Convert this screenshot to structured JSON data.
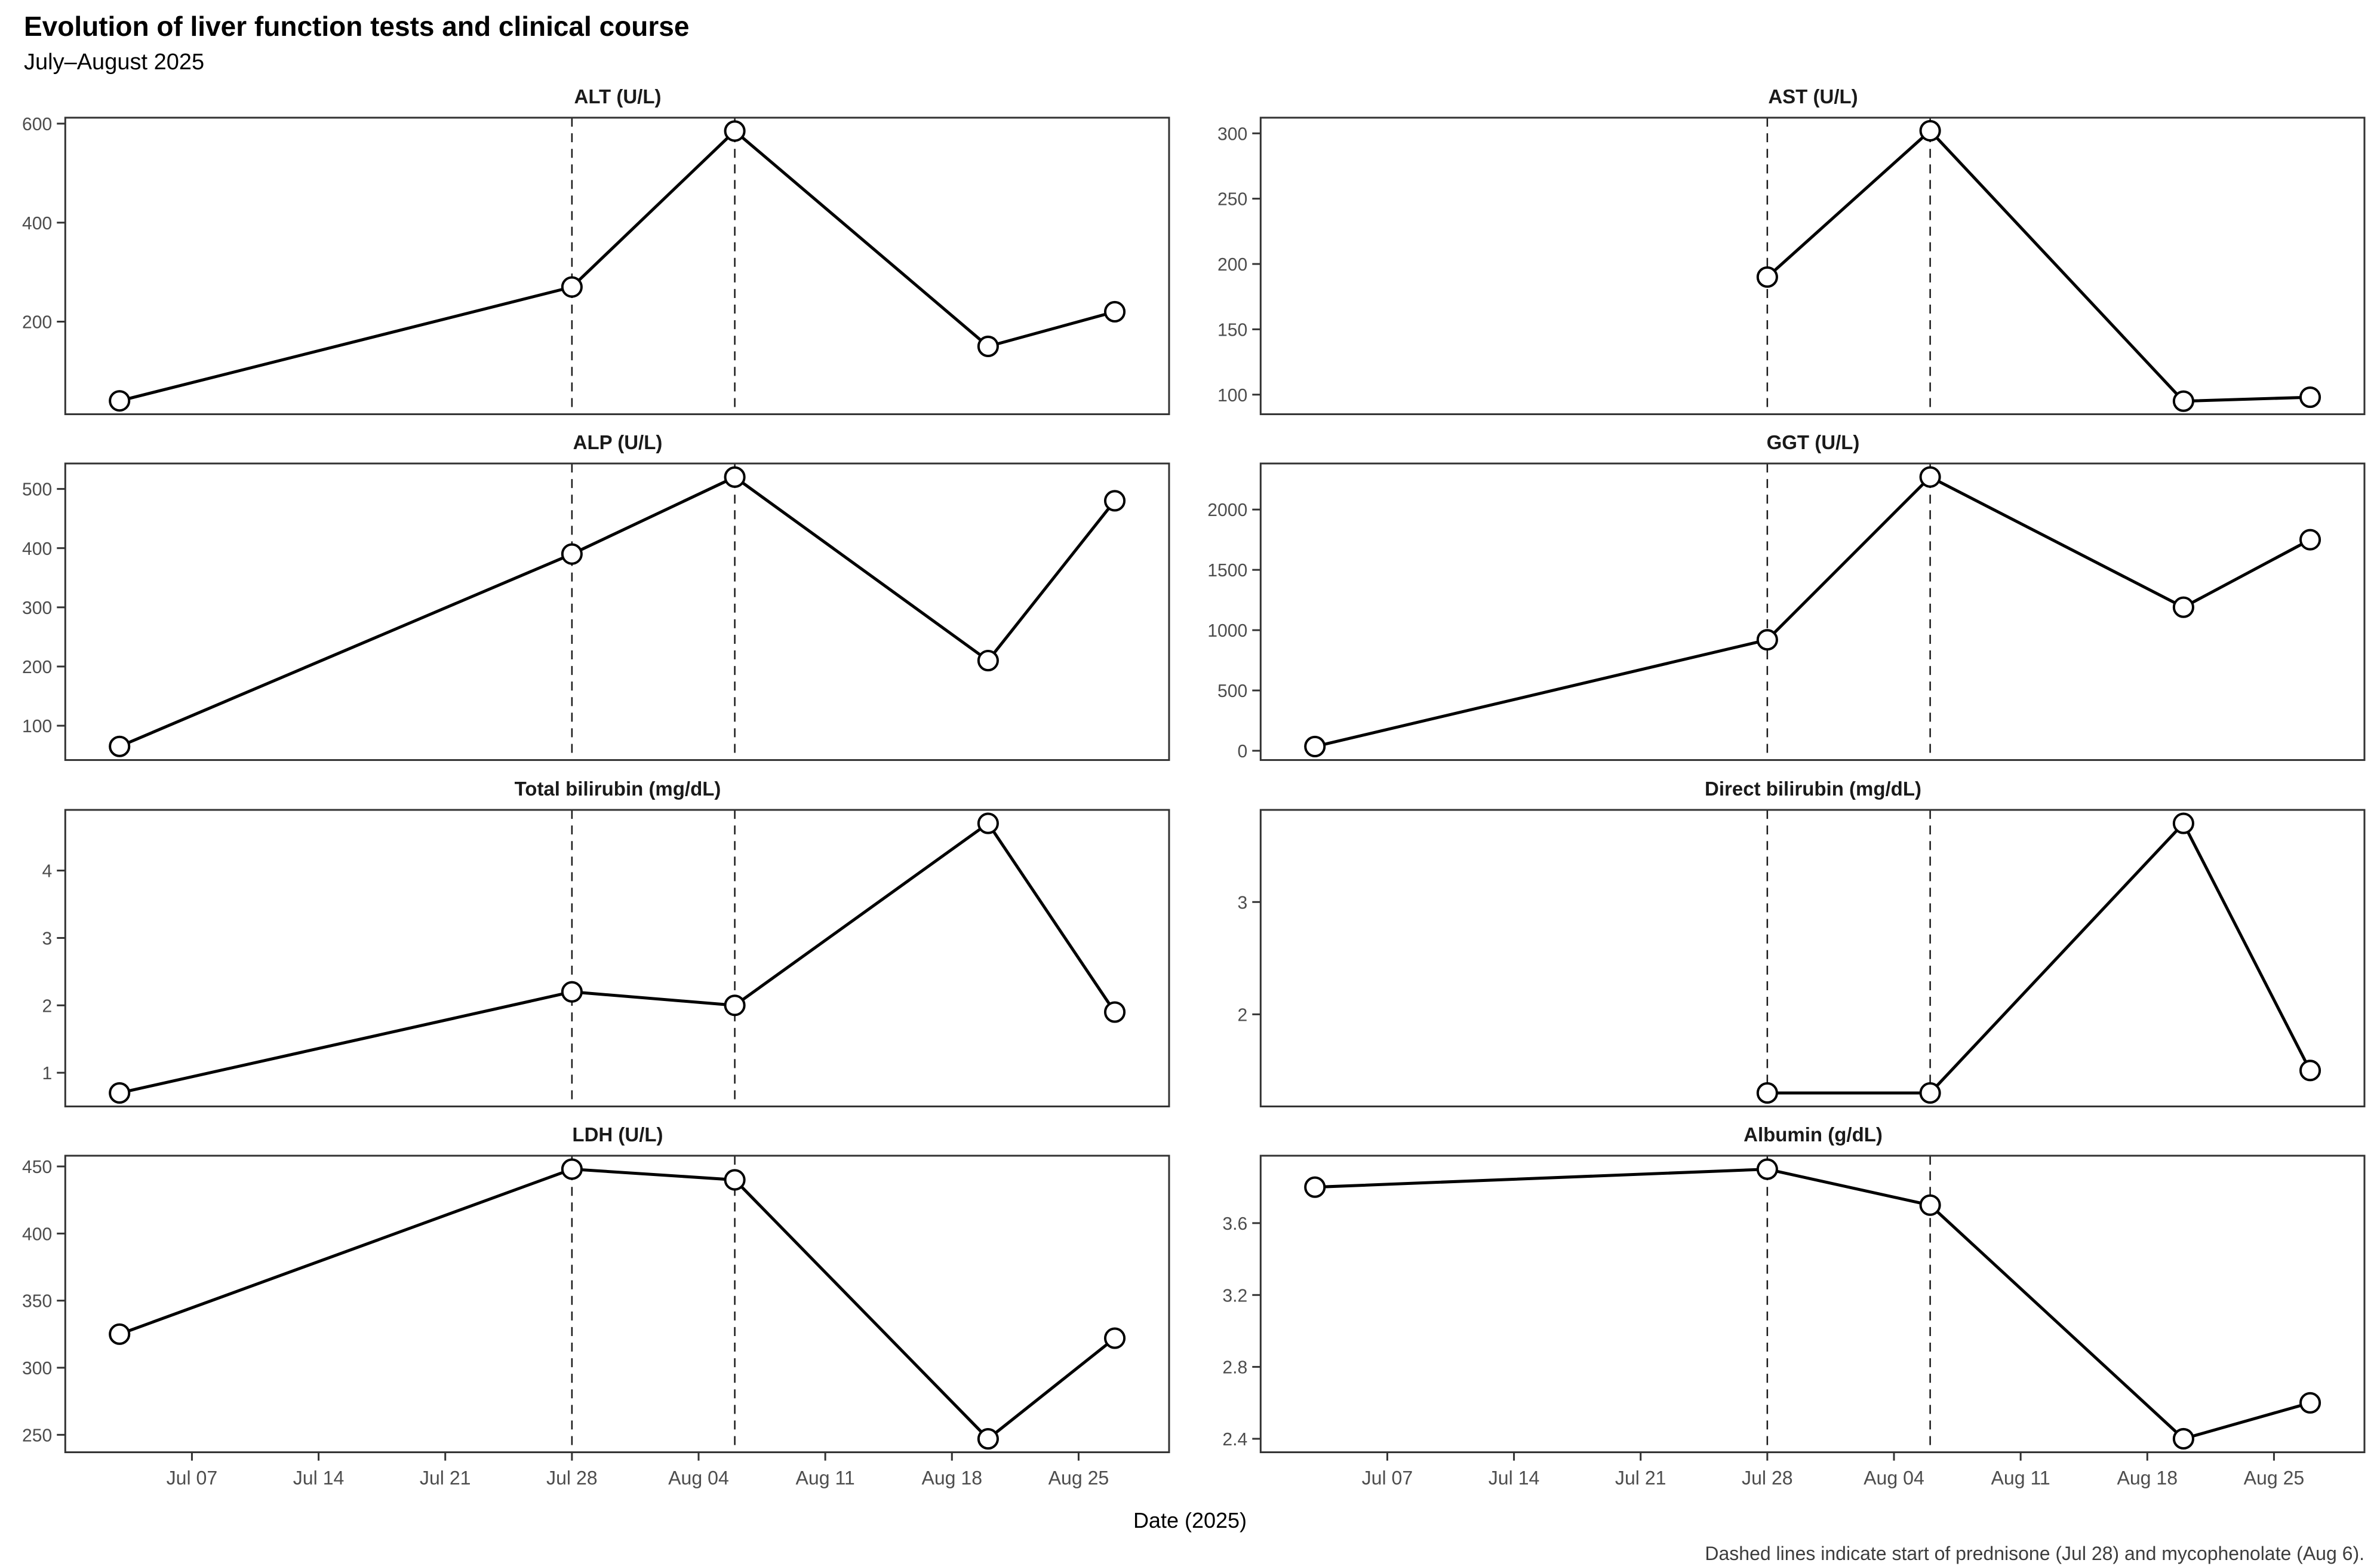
{
  "header": {
    "title": "Evolution of liver function tests and clinical course",
    "subtitle": "July–August 2025"
  },
  "footer": {
    "xlabel": "Date (2025)",
    "caption": "Dashed lines indicate start of prednisone (Jul 28) and mycophenolate (Aug 6)."
  },
  "chart_data": {
    "type": "line",
    "title": "Evolution of liver function tests and clinical course",
    "subtitle": "July–August 2025",
    "xlabel": "Date (2025)",
    "grid": "off",
    "legend": "none",
    "x_tick_labels": [
      "Jul 07",
      "Jul 14",
      "Jul 21",
      "Jul 28",
      "Aug 04",
      "Aug 11",
      "Aug 18",
      "Aug 25"
    ],
    "x_tick_days": [
      6,
      13,
      20,
      27,
      34,
      41,
      48,
      55
    ],
    "xlim_days": [
      -1,
      60
    ],
    "event_lines": [
      {
        "label": "prednisone start",
        "date": "Jul 28",
        "day": 27
      },
      {
        "label": "mycophenolate start",
        "date": "Aug 6",
        "day": 36
      }
    ],
    "panels": [
      {
        "title": "ALT (U/L)",
        "dates": [
          "Jul 03",
          "Jul 28",
          "Aug 06",
          "Aug 20",
          "Aug 27"
        ],
        "days": [
          2,
          27,
          36,
          50,
          57
        ],
        "values": [
          40,
          270,
          585,
          150,
          220
        ],
        "yticks": [
          200,
          400,
          600
        ],
        "ylim": [
          13,
          612
        ]
      },
      {
        "title": "AST (U/L)",
        "dates": [
          "Jul 28",
          "Aug 06",
          "Aug 20",
          "Aug 27"
        ],
        "days": [
          27,
          36,
          50,
          57
        ],
        "values": [
          190,
          302,
          95,
          98
        ],
        "yticks": [
          100,
          150,
          200,
          250,
          300
        ],
        "ylim": [
          85,
          312
        ]
      },
      {
        "title": "ALP (U/L)",
        "dates": [
          "Jul 03",
          "Jul 28",
          "Aug 06",
          "Aug 20",
          "Aug 27"
        ],
        "days": [
          2,
          27,
          36,
          50,
          57
        ],
        "values": [
          65,
          390,
          520,
          210,
          480
        ],
        "yticks": [
          100,
          200,
          300,
          400,
          500
        ],
        "ylim": [
          42,
          543
        ]
      },
      {
        "title": "GGT (U/L)",
        "dates": [
          "Jul 03",
          "Jul 28",
          "Aug 06",
          "Aug 20",
          "Aug 27"
        ],
        "days": [
          2,
          27,
          36,
          50,
          57
        ],
        "values": [
          35,
          920,
          2270,
          1190,
          1750
        ],
        "yticks": [
          0,
          500,
          1000,
          1500,
          2000
        ],
        "ylim": [
          -77,
          2382
        ]
      },
      {
        "title": "Total bilirubin (mg/dL)",
        "dates": [
          "Jul 03",
          "Jul 28",
          "Aug 06",
          "Aug 20",
          "Aug 27"
        ],
        "days": [
          2,
          27,
          36,
          50,
          57
        ],
        "values": [
          0.7,
          2.2,
          2.0,
          4.7,
          1.9
        ],
        "yticks": [
          1,
          2,
          3,
          4
        ],
        "ylim": [
          0.5,
          4.9
        ]
      },
      {
        "title": "Direct bilirubin (mg/dL)",
        "dates": [
          "Jul 28",
          "Aug 06",
          "Aug 20",
          "Aug 27"
        ],
        "days": [
          27,
          36,
          50,
          57
        ],
        "values": [
          1.3,
          1.3,
          3.7,
          1.5
        ],
        "yticks": [
          2,
          3
        ],
        "ylim": [
          1.18,
          3.82
        ]
      },
      {
        "title": "LDH (U/L)",
        "dates": [
          "Jul 03",
          "Jul 28",
          "Aug 06",
          "Aug 20",
          "Aug 27"
        ],
        "days": [
          2,
          27,
          36,
          50,
          57
        ],
        "values": [
          325,
          448,
          440,
          247,
          322
        ],
        "yticks": [
          250,
          300,
          350,
          400,
          450
        ],
        "ylim": [
          237,
          458
        ]
      },
      {
        "title": "Albumin (g/dL)",
        "dates": [
          "Jul 03",
          "Jul 28",
          "Aug 06",
          "Aug 20",
          "Aug 27"
        ],
        "days": [
          2,
          27,
          36,
          50,
          57
        ],
        "values": [
          3.8,
          3.9,
          3.7,
          2.4,
          2.6
        ],
        "yticks": [
          2.4,
          2.8,
          3.2,
          3.6
        ],
        "ylim": [
          2.325,
          3.975
        ]
      }
    ]
  }
}
